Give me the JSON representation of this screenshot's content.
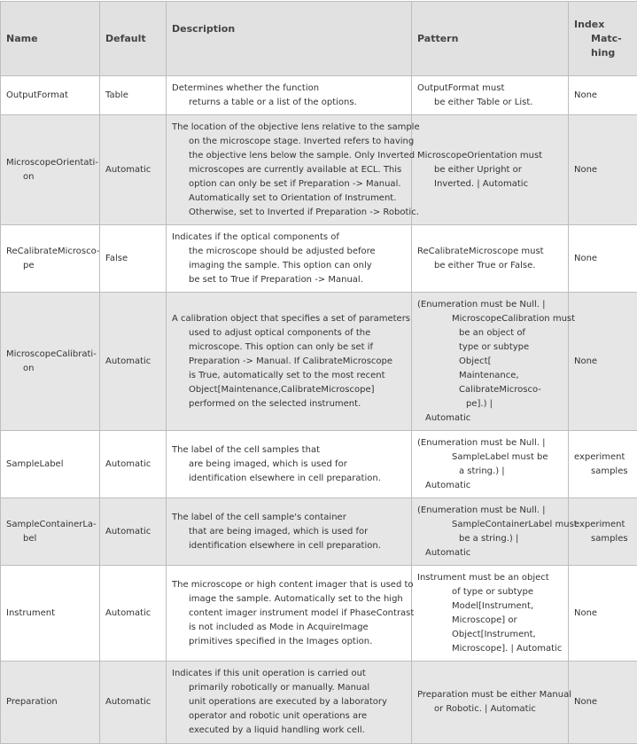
{
  "headers": {
    "name": "Name",
    "default": "Default",
    "description": "Description",
    "pattern": "Pattern",
    "index_lines": [
      "Index",
      "Matc-",
      "hing"
    ]
  },
  "rows": [
    {
      "name": [
        "OutputFormat"
      ],
      "default": "Table",
      "description": [
        "Determines whether the function",
        "returns a table or a list of the options."
      ],
      "pattern": [
        "OutputFormat must",
        "be either Table or List."
      ],
      "index": [
        "None"
      ]
    },
    {
      "name": [
        "MicroscopeOrientati-",
        "on"
      ],
      "default": "Automatic",
      "description": [
        "The location of the objective lens relative to the sample",
        "on the microscope stage. Inverted refers to having",
        "the objective lens below the sample. Only Inverted",
        "microscopes are currently available at ECL. This",
        "option can only be set if Preparation -> Manual.",
        "Automatically set to Orientation of Instrument.",
        "Otherwise, set to Inverted if Preparation -> Robotic."
      ],
      "pattern": [
        "MicroscopeOrientation must",
        "be either Upright or",
        "Inverted.  | Automatic"
      ],
      "index": [
        "None"
      ]
    },
    {
      "name": [
        "ReCalibrateMicrosco-",
        "pe"
      ],
      "default": "False",
      "description": [
        "Indicates if the optical components of",
        "the microscope should be adjusted before",
        "imaging the sample. This option can only",
        "be set to True if Preparation -> Manual."
      ],
      "pattern": [
        "ReCalibrateMicroscope must",
        "be either True or False."
      ],
      "index": [
        "None"
      ]
    },
    {
      "name": [
        "MicroscopeCalibrati-",
        "on"
      ],
      "default": "Automatic",
      "description": [
        "A calibration object that specifies a set of parameters",
        "used to adjust optical components of the",
        "microscope. This option can only be set if",
        "Preparation -> Manual.  If CalibrateMicroscope",
        "is True, automatically set to the most recent",
        "Object[Maintenance,CalibrateMicroscope]",
        "performed on the selected instrument."
      ],
      "pattern": [
        "(Enumeration must be Null.  |",
        "MicroscopeCalibration must",
        "be an object of",
        "type or subtype",
        "Object[",
        "Maintenance,",
        "CalibrateMicrosco-",
        "pe].)  |",
        "Automatic"
      ],
      "index": [
        "None"
      ]
    },
    {
      "name": [
        "SampleLabel"
      ],
      "default": "Automatic",
      "description": [
        "The label of the cell samples that",
        "are being imaged, which is used for",
        "identification elsewhere in cell preparation."
      ],
      "pattern": [
        "(Enumeration must be Null.  |",
        "SampleLabel must be",
        "a string.)  |",
        "Automatic"
      ],
      "index": [
        "experiment",
        "samples"
      ]
    },
    {
      "name": [
        "SampleContainerLa-",
        "bel"
      ],
      "default": "Automatic",
      "description": [
        "The label of the cell sample's container",
        "that are being imaged, which is used for",
        "identification elsewhere in cell preparation."
      ],
      "pattern": [
        "(Enumeration must be Null.  |",
        "SampleContainerLabel must",
        "be a string.)  |",
        "Automatic"
      ],
      "index": [
        "experiment",
        "samples"
      ]
    },
    {
      "name": [
        "Instrument"
      ],
      "default": "Automatic",
      "description": [
        "The microscope or high content imager that is used to",
        "image the sample.  Automatically set to the high",
        "content imager instrument model if PhaseContrast",
        "is not included as Mode in AcquireImage",
        "primitives specified in the Images option."
      ],
      "pattern": [
        "Instrument must be an object",
        "of type or subtype",
        "Model[Instrument,",
        "Microscope] or",
        "Object[Instrument,",
        "Microscope].  | Automatic"
      ],
      "index": [
        "None"
      ]
    },
    {
      "name": [
        "Preparation"
      ],
      "default": "Automatic",
      "description": [
        "Indicates if this unit operation is carried out",
        "primarily robotically or manually.  Manual",
        "unit operations are executed by a laboratory",
        "operator and robotic unit operations are",
        "executed by a liquid handling work cell."
      ],
      "pattern": [
        "Preparation must be either Manual",
        "or Robotic.  | Automatic"
      ],
      "index": [
        "None"
      ]
    }
  ]
}
